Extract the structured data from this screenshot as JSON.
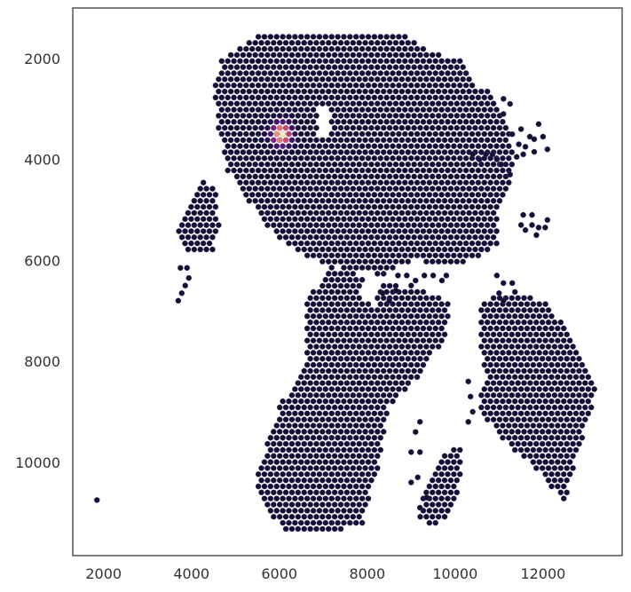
{
  "chart_data": {
    "type": "scatter",
    "title": "",
    "xlabel": "",
    "ylabel": "",
    "xlim": [
      1300,
      13800
    ],
    "ylim": [
      11850,
      1000
    ],
    "y_inverted": true,
    "grid": false,
    "legend": "none",
    "marker": "hexagonal-grid spot",
    "spot_spacing": 139,
    "colors": {
      "base_spot": "#150e37",
      "spot_edge": "#5a5582",
      "hot_1": "#3b0f70",
      "hot_2": "#8c2981",
      "hot_3": "#de4968",
      "hot_4": "#fe9f6d",
      "hot_5": "#fcfdbf"
    },
    "x_ticks": [
      {
        "value": 2000,
        "label": "2000"
      },
      {
        "value": 4000,
        "label": "4000"
      },
      {
        "value": 6000,
        "label": "6000"
      },
      {
        "value": 8000,
        "label": "8000"
      },
      {
        "value": 10000,
        "label": "10000"
      },
      {
        "value": 12000,
        "label": "12000"
      }
    ],
    "y_ticks": [
      {
        "value": 2000,
        "label": "2000"
      },
      {
        "value": 4000,
        "label": "4000"
      },
      {
        "value": 6000,
        "label": "6000"
      },
      {
        "value": 8000,
        "label": "8000"
      },
      {
        "value": 10000,
        "label": "10000"
      }
    ],
    "tissue_regions": [
      [
        [
          5600,
          1500
        ],
        [
          8800,
          1500
        ],
        [
          9500,
          1900
        ],
        [
          10100,
          2000
        ],
        [
          10600,
          2500
        ],
        [
          11000,
          2900
        ],
        [
          11300,
          3700
        ],
        [
          11350,
          4200
        ],
        [
          11000,
          5000
        ],
        [
          11000,
          5700
        ],
        [
          10100,
          6100
        ],
        [
          9000,
          6000
        ],
        [
          8400,
          6300
        ],
        [
          7200,
          6100
        ],
        [
          6600,
          5900
        ],
        [
          5900,
          5500
        ],
        [
          5200,
          4700
        ],
        [
          4800,
          4200
        ],
        [
          4600,
          3300
        ],
        [
          4500,
          2600
        ],
        [
          4700,
          2000
        ]
      ],
      [
        [
          3700,
          5300
        ],
        [
          3950,
          4800
        ],
        [
          4200,
          4400
        ],
        [
          4550,
          4600
        ],
        [
          4650,
          5300
        ],
        [
          4500,
          5800
        ],
        [
          4000,
          5900
        ],
        [
          3750,
          5700
        ]
      ],
      [
        [
          7100,
          6100
        ],
        [
          8200,
          6400
        ],
        [
          9200,
          6600
        ],
        [
          9900,
          6800
        ],
        [
          9800,
          7500
        ],
        [
          9200,
          8300
        ],
        [
          8500,
          8900
        ],
        [
          8300,
          10000
        ],
        [
          8100,
          10500
        ],
        [
          7900,
          11300
        ],
        [
          6100,
          11400
        ],
        [
          5400,
          10500
        ],
        [
          6000,
          8900
        ],
        [
          6600,
          8000
        ],
        [
          6600,
          6900
        ]
      ],
      [
        [
          10600,
          6800
        ],
        [
          11400,
          6600
        ],
        [
          12000,
          6800
        ],
        [
          12500,
          7300
        ],
        [
          13250,
          8500
        ],
        [
          12900,
          9500
        ],
        [
          12500,
          10800
        ],
        [
          11700,
          10000
        ],
        [
          11000,
          9500
        ],
        [
          10600,
          9000
        ],
        [
          10500,
          8000
        ]
      ],
      [
        [
          9300,
          10600
        ],
        [
          9500,
          10300
        ],
        [
          9800,
          9800
        ],
        [
          10100,
          9600
        ],
        [
          10150,
          10300
        ],
        [
          9900,
          11000
        ],
        [
          9500,
          11300
        ],
        [
          9150,
          11100
        ]
      ]
    ],
    "tissue_holes": [
      [
        [
          6850,
          2950
        ],
        [
          7150,
          2950
        ],
        [
          7150,
          3600
        ],
        [
          6850,
          3600
        ]
      ],
      [
        [
          10400,
          1900
        ],
        [
          10650,
          2100
        ],
        [
          10550,
          2700
        ],
        [
          10300,
          2300
        ]
      ],
      [
        [
          7900,
          6300
        ],
        [
          8300,
          6350
        ],
        [
          8200,
          6900
        ],
        [
          7850,
          6800
        ]
      ],
      [
        [
          10100,
          7500
        ],
        [
          10500,
          7400
        ],
        [
          10700,
          8300
        ],
        [
          10400,
          9000
        ],
        [
          10150,
          8600
        ]
      ],
      [
        [
          8900,
          8600
        ],
        [
          9400,
          8000
        ],
        [
          9600,
          8700
        ],
        [
          9100,
          9200
        ]
      ]
    ],
    "scattered_spots": [
      [
        1850,
        10750
      ],
      [
        3700,
        6800
      ],
      [
        3780,
        6650
      ],
      [
        3860,
        6500
      ],
      [
        3940,
        6350
      ],
      [
        3750,
        6150
      ],
      [
        3900,
        6150
      ],
      [
        11100,
        2800
      ],
      [
        11250,
        2900
      ],
      [
        11100,
        3100
      ],
      [
        11300,
        3500
      ],
      [
        11500,
        3400
      ],
      [
        11450,
        3700
      ],
      [
        11600,
        3750
      ],
      [
        11700,
        3550
      ],
      [
        11800,
        3600
      ],
      [
        11900,
        3300
      ],
      [
        12000,
        3550
      ],
      [
        12100,
        3800
      ],
      [
        11800,
        3850
      ],
      [
        11550,
        3900
      ],
      [
        11400,
        3950
      ],
      [
        10400,
        3900
      ],
      [
        10550,
        4000
      ],
      [
        10700,
        3900
      ],
      [
        10850,
        3900
      ],
      [
        10950,
        4000
      ],
      [
        11050,
        4100
      ],
      [
        11250,
        4300
      ],
      [
        11550,
        5100
      ],
      [
        11500,
        5300
      ],
      [
        11600,
        5400
      ],
      [
        11750,
        5300
      ],
      [
        11900,
        5350
      ],
      [
        12050,
        5350
      ],
      [
        12100,
        5200
      ],
      [
        11850,
        5500
      ],
      [
        11750,
        5100
      ],
      [
        10950,
        6300
      ],
      [
        11100,
        6450
      ],
      [
        11300,
        6450
      ],
      [
        11000,
        6650
      ],
      [
        11100,
        6800
      ],
      [
        8700,
        6300
      ],
      [
        8900,
        6300
      ],
      [
        9100,
        6400
      ],
      [
        9300,
        6300
      ],
      [
        9500,
        6300
      ],
      [
        9700,
        6400
      ],
      [
        9800,
        6300
      ],
      [
        8350,
        6650
      ],
      [
        8500,
        6800
      ],
      [
        8650,
        6600
      ],
      [
        9000,
        6500
      ],
      [
        10300,
        8400
      ],
      [
        10350,
        8700
      ],
      [
        10400,
        9000
      ],
      [
        10300,
        9200
      ],
      [
        9200,
        9200
      ],
      [
        9100,
        9400
      ],
      [
        9000,
        9800
      ],
      [
        9200,
        9800
      ],
      [
        9150,
        10300
      ],
      [
        9350,
        10700
      ],
      [
        9200,
        10900
      ],
      [
        9000,
        10400
      ]
    ],
    "hotspot": {
      "x": 6050,
      "y": 3500,
      "peak_value": 1.0,
      "background_value": 0.0
    }
  }
}
